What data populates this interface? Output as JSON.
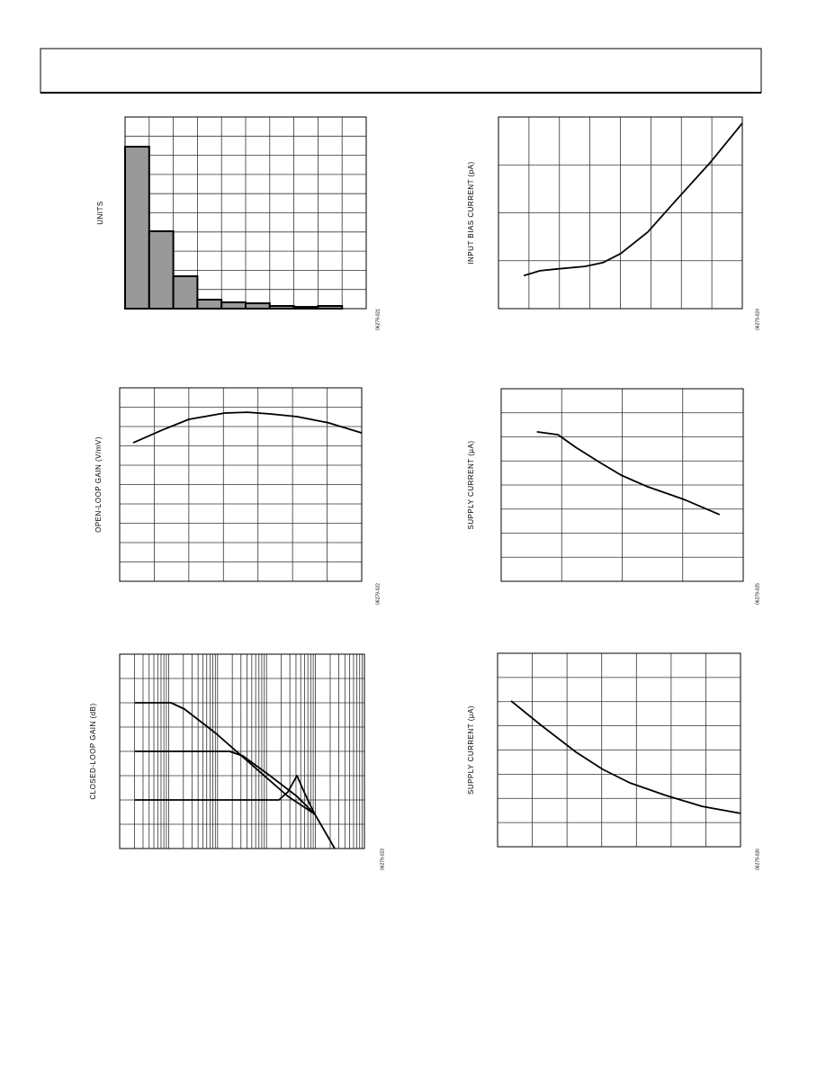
{
  "chart_data": [
    {
      "type": "histogram",
      "code": "06279-021",
      "ylabel": "UNITS",
      "bins": [
        0,
        1,
        2,
        3,
        4,
        5,
        6,
        7,
        8,
        9
      ],
      "values": [
        8.45,
        4.04,
        1.69,
        0.47,
        0.33,
        0.28,
        0.14,
        0.09,
        0.14
      ],
      "color": "#999999",
      "xlim": [
        0,
        10
      ],
      "ylim": [
        0,
        10
      ],
      "xgrid": [
        0,
        1,
        2,
        3,
        4,
        5,
        6,
        7,
        8,
        9,
        10
      ],
      "ygrid": [
        0,
        1,
        2,
        3,
        4,
        5,
        6,
        7,
        8,
        9,
        10
      ]
    },
    {
      "type": "line",
      "code": "06279-024",
      "ylabel": "INPUT BIAS CURRENT (pA)",
      "series": [
        {
          "color": "#000000",
          "x": [
            0.83,
            1.36,
            1.95,
            2.83,
            3.42,
            4.01,
            4.9,
            5.78,
            6.96,
            8.0
          ],
          "values": [
            0.69,
            0.79,
            0.83,
            0.88,
            0.96,
            1.15,
            1.6,
            2.23,
            3.06,
            3.87
          ]
        }
      ],
      "xlim": [
        0,
        8
      ],
      "ylim": [
        0,
        4
      ],
      "xgrid": [
        0,
        1,
        2,
        3,
        4,
        5,
        6,
        7,
        8
      ],
      "ygrid": [
        0,
        1,
        2,
        3,
        4
      ]
    },
    {
      "type": "line",
      "code": "06279-022",
      "ylabel": "OPEN-LOOP GAIN (V/mV)",
      "series": [
        {
          "color": "#000000",
          "x": [
            0.39,
            1.22,
            2.0,
            3.04,
            3.69,
            4.35,
            5.13,
            6.04,
            7.0
          ],
          "values": [
            7.16,
            7.81,
            8.37,
            8.7,
            8.74,
            8.65,
            8.51,
            8.19,
            7.67
          ]
        }
      ],
      "xlim": [
        0,
        7
      ],
      "ylim": [
        0,
        10
      ],
      "xgrid": [
        0,
        1,
        2,
        3,
        4,
        5,
        6,
        7
      ],
      "ygrid": [
        0,
        1,
        2,
        3,
        4,
        5,
        6,
        7,
        8,
        9,
        10
      ]
    },
    {
      "type": "line",
      "code": "06279-025",
      "ylabel": "SUPPLY CURRENT (µA)",
      "series": [
        {
          "color": "#000000",
          "x": [
            0.59,
            0.94,
            1.23,
            1.61,
            1.98,
            2.42,
            3.02,
            3.61
          ],
          "values": [
            6.21,
            6.09,
            5.57,
            4.97,
            4.41,
            3.93,
            3.4,
            2.77
          ]
        }
      ],
      "xlim": [
        0,
        4
      ],
      "ylim": [
        0,
        8
      ],
      "xgrid": [
        0,
        1,
        2,
        3,
        4
      ],
      "ygrid": [
        0,
        1,
        2,
        3,
        4,
        5,
        6,
        7,
        8
      ]
    },
    {
      "type": "line",
      "code": "06279-023",
      "ylabel": "CLOSED-LOOP GAIN (dB)",
      "xlog": true,
      "series": [
        {
          "color": "#000000",
          "x": [
            2.05,
            11.2,
            21.1,
            92.7,
            504,
            2740,
            9750,
            24700
          ],
          "values": [
            6.0,
            6.0,
            5.74,
            4.74,
            3.44,
            2.15,
            1.41,
            0
          ]
        },
        {
          "color": "#000000",
          "x": [
            2.05,
            175,
            330,
            1175,
            4180,
            9750
          ],
          "values": [
            4.0,
            4.0,
            3.81,
            3.0,
            2.15,
            1.41
          ]
        },
        {
          "color": "#000000",
          "x": [
            2.05,
            1790,
            2740,
            4180,
            5870,
            7890,
            9750
          ],
          "values": [
            2.0,
            2.0,
            2.33,
            3.0,
            2.33,
            1.78,
            1.41
          ]
        }
      ],
      "xlim": [
        1,
        100000
      ],
      "ylim": [
        0,
        8
      ],
      "xgrid": [
        1,
        10,
        100,
        1000,
        10000,
        100000
      ],
      "ygrid": [
        0,
        1,
        2,
        3,
        4,
        5,
        6,
        7,
        8
      ]
    },
    {
      "type": "line",
      "code": "06279-026",
      "ylabel": "SUPPLY CURRENT (µA)",
      "series": [
        {
          "color": "#000000",
          "x": [
            0.39,
            1.22,
            2.26,
            3.03,
            3.81,
            4.85,
            5.89,
            7.0
          ],
          "values": [
            6.03,
            5.06,
            3.91,
            3.2,
            2.64,
            2.12,
            1.67,
            1.38
          ]
        }
      ],
      "xlim": [
        0,
        7
      ],
      "ylim": [
        0,
        8
      ],
      "xgrid": [
        0,
        1,
        2,
        3,
        4,
        5,
        6,
        7
      ],
      "ygrid": [
        0,
        1,
        2,
        3,
        4,
        5,
        6,
        7,
        8
      ]
    }
  ]
}
